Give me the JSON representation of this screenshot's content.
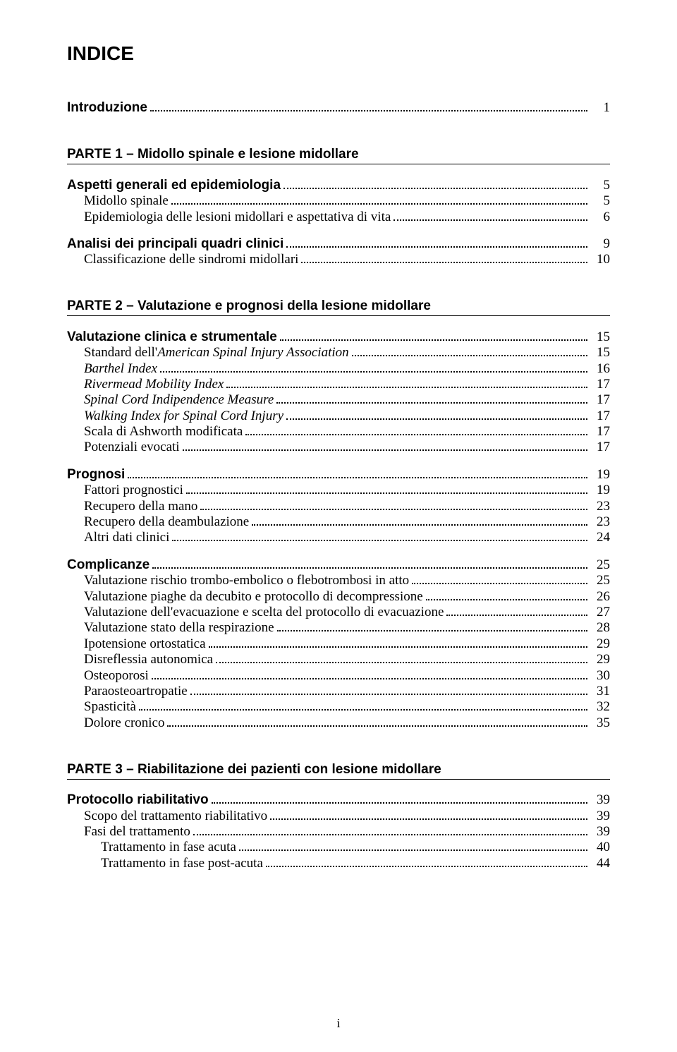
{
  "title": "INDICE",
  "footer_page": "i",
  "entries": [
    {
      "type": "row",
      "label": "Introduzione",
      "page": "1",
      "class": "bold-arial",
      "indent": 0
    },
    {
      "type": "part",
      "label": "PARTE 1 – Midollo spinale e lesione midollare"
    },
    {
      "type": "row",
      "label": "Aspetti generali ed epidemiologia",
      "page": "5",
      "class": "section-heading",
      "indent": 0
    },
    {
      "type": "row",
      "label": "Midollo spinale",
      "page": "5",
      "class": "body-entry",
      "indent": 1
    },
    {
      "type": "row",
      "label": "Epidemiologia delle lesioni midollari e aspettativa di vita",
      "page": "6",
      "class": "body-entry",
      "indent": 1
    },
    {
      "type": "spacer",
      "size": "md"
    },
    {
      "type": "row",
      "label": "Analisi dei principali quadri clinici",
      "page": "9",
      "class": "section-heading",
      "indent": 0
    },
    {
      "type": "row",
      "label": "Classificazione delle sindromi midollari",
      "page": "10",
      "class": "body-entry",
      "indent": 1
    },
    {
      "type": "part",
      "label": "PARTE 2 – Valutazione e prognosi della lesione midollare"
    },
    {
      "type": "row",
      "label": "Valutazione clinica e strumentale",
      "page": "15",
      "class": "section-heading",
      "indent": 0
    },
    {
      "type": "row",
      "label": "Standard dell'American Spinal Injury Association",
      "page": "15",
      "class": "body-entry",
      "indent": 1,
      "italicAfter": "Standard dell'"
    },
    {
      "type": "row",
      "label": "Barthel Index",
      "page": "16",
      "class": "body-entry italic",
      "indent": 1
    },
    {
      "type": "row",
      "label": "Rivermead Mobility Index",
      "page": "17",
      "class": "body-entry italic",
      "indent": 1
    },
    {
      "type": "row",
      "label": "Spinal Cord Indipendence Measure",
      "page": "17",
      "class": "body-entry italic",
      "indent": 1
    },
    {
      "type": "row",
      "label": "Walking Index for Spinal Cord Injury",
      "page": "17",
      "class": "body-entry italic",
      "indent": 1
    },
    {
      "type": "row",
      "label": "Scala di Ashworth modificata",
      "page": "17",
      "class": "body-entry",
      "indent": 1
    },
    {
      "type": "row",
      "label": "Potenziali evocati",
      "page": "17",
      "class": "body-entry",
      "indent": 1
    },
    {
      "type": "spacer",
      "size": "md"
    },
    {
      "type": "row",
      "label": "Prognosi",
      "page": "19",
      "class": "section-heading",
      "indent": 0
    },
    {
      "type": "row",
      "label": "Fattori prognostici",
      "page": "19",
      "class": "body-entry",
      "indent": 1
    },
    {
      "type": "row",
      "label": "Recupero della mano",
      "page": "23",
      "class": "body-entry",
      "indent": 1
    },
    {
      "type": "row",
      "label": "Recupero della deambulazione",
      "page": "23",
      "class": "body-entry",
      "indent": 1
    },
    {
      "type": "row",
      "label": "Altri dati clinici",
      "page": "24",
      "class": "body-entry",
      "indent": 1
    },
    {
      "type": "spacer",
      "size": "md"
    },
    {
      "type": "row",
      "label": "Complicanze",
      "page": "25",
      "class": "section-heading",
      "indent": 0
    },
    {
      "type": "row",
      "label": "Valutazione rischio trombo-embolico o flebotrombosi in atto",
      "page": "25",
      "class": "body-entry",
      "indent": 1
    },
    {
      "type": "row",
      "label": "Valutazione piaghe da decubito e protocollo di decompressione",
      "page": "26",
      "class": "body-entry",
      "indent": 1
    },
    {
      "type": "row",
      "label": "Valutazione dell'evacuazione e scelta del protocollo di evacuazione",
      "page": "27",
      "class": "body-entry",
      "indent": 1
    },
    {
      "type": "row",
      "label": "Valutazione stato della respirazione",
      "page": "28",
      "class": "body-entry",
      "indent": 1
    },
    {
      "type": "row",
      "label": "Ipotensione ortostatica",
      "page": "29",
      "class": "body-entry",
      "indent": 1
    },
    {
      "type": "row",
      "label": "Disreflessia autonomica",
      "page": "29",
      "class": "body-entry",
      "indent": 1
    },
    {
      "type": "row",
      "label": "Osteoporosi",
      "page": "30",
      "class": "body-entry",
      "indent": 1
    },
    {
      "type": "row",
      "label": "Paraosteoartropatie",
      "page": "31",
      "class": "body-entry",
      "indent": 1
    },
    {
      "type": "row",
      "label": "Spasticità",
      "page": "32",
      "class": "body-entry",
      "indent": 1
    },
    {
      "type": "row",
      "label": "Dolore cronico",
      "page": "35",
      "class": "body-entry",
      "indent": 1
    },
    {
      "type": "part",
      "label": "PARTE 3 – Riabilitazione dei pazienti con lesione midollare"
    },
    {
      "type": "row",
      "label": "Protocollo riabilitativo",
      "page": "39",
      "class": "section-heading",
      "indent": 0
    },
    {
      "type": "row",
      "label": "Scopo del trattamento riabilitativo",
      "page": "39",
      "class": "body-entry",
      "indent": 1
    },
    {
      "type": "row",
      "label": "Fasi del trattamento",
      "page": "39",
      "class": "body-entry",
      "indent": 1
    },
    {
      "type": "row",
      "label": "Trattamento in fase acuta",
      "page": "40",
      "class": "body-entry",
      "indent": 2
    },
    {
      "type": "row",
      "label": "Trattamento in fase post-acuta",
      "page": "44",
      "class": "body-entry",
      "indent": 2
    }
  ]
}
